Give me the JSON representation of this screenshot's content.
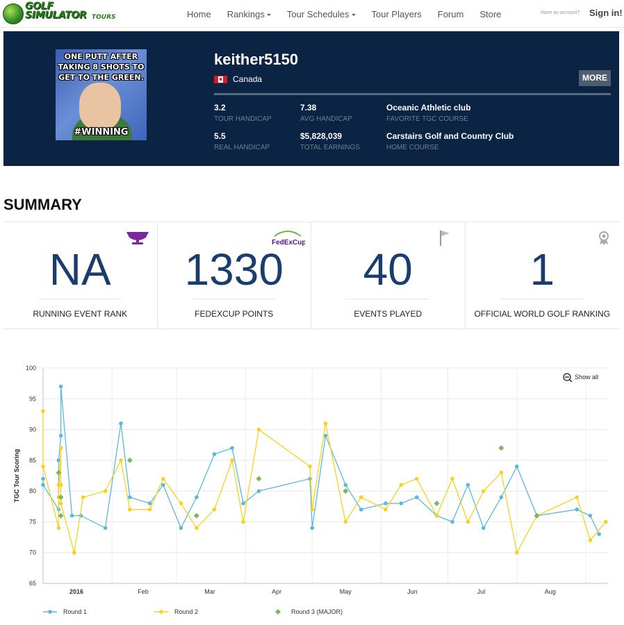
{
  "nav": {
    "logo_line1": "GOLF",
    "logo_line2": "SIMULATOR",
    "logo_tours": "TOURS",
    "items": [
      "Home",
      "Rankings",
      "Tour Schedules",
      "Tour Players",
      "Forum",
      "Store"
    ],
    "account_prompt": "Have an account?",
    "sign_in": "Sign in!"
  },
  "profile": {
    "avatar_top": "ONE PUTT AFTER TAKING 8 SHOTS TO GET TO THE GREEN.",
    "avatar_bottom": "#WINNING",
    "username": "keither5150",
    "country": "Canada",
    "more": "MORE",
    "stats": [
      {
        "value": "3.2",
        "label": "TOUR HANDICAP"
      },
      {
        "value": "7.38",
        "label": "AVG HANDICAP"
      },
      {
        "value": "Oceanic Athletic club",
        "label": "FAVORITE TGC COURSE"
      },
      {
        "value": "5.5",
        "label": "REAL HANDICAP"
      },
      {
        "value": "$5,828,039",
        "label": "TOTAL EARNINGS"
      },
      {
        "value": "Carstairs Golf and Country Club",
        "label": "HOME COURSE"
      }
    ]
  },
  "summary": {
    "title": "SUMMARY",
    "cards": [
      {
        "value": "NA",
        "label": "RUNNING EVENT RANK",
        "icon": "trophy-icon"
      },
      {
        "value": "1330",
        "label": "FEDEXCUP POINTS",
        "icon": "fedexcup-logo",
        "logo_text": "FedExCup"
      },
      {
        "value": "40",
        "label": "EVENTS PLAYED",
        "icon": "flag-icon"
      },
      {
        "value": "1",
        "label": "OFFICIAL WORLD GOLF RANKING",
        "icon": "award-ribbon-icon"
      }
    ]
  },
  "colors": {
    "nav_bg": "#ffffff",
    "profile_bg": "#0c2443",
    "round1": "#5cb8dc",
    "round2": "#f7d221",
    "round3": "#7bb661",
    "card_value": "#1a3d6e"
  },
  "chart_data": {
    "type": "line",
    "ylabel": "TGC Tour Scoring",
    "ylim": [
      65,
      100
    ],
    "yticks": [
      65,
      70,
      75,
      80,
      85,
      90,
      95,
      100
    ],
    "xticks": [
      "2016",
      "Feb",
      "Mar",
      "Apr",
      "May",
      "Jun",
      "Jul",
      "Aug"
    ],
    "xrange": [
      "2016-01-01",
      "2016-08-31"
    ],
    "show_all": "Show all",
    "series": [
      {
        "name": "Round 1",
        "points": [
          [
            "2016-01-01",
            82
          ],
          [
            "2016-01-01",
            81
          ],
          [
            "2016-01-08",
            77
          ],
          [
            "2016-01-08",
            85
          ],
          [
            "2016-01-09",
            89
          ],
          [
            "2016-01-09",
            97
          ],
          [
            "2016-01-14",
            76
          ],
          [
            "2016-01-18",
            76
          ],
          [
            "2016-01-29",
            74
          ],
          [
            "2016-02-05",
            91
          ],
          [
            "2016-02-09",
            79
          ],
          [
            "2016-02-18",
            78
          ],
          [
            "2016-02-24",
            81
          ],
          [
            "2016-03-03",
            74
          ],
          [
            "2016-03-10",
            79
          ],
          [
            "2016-03-18",
            86
          ],
          [
            "2016-03-26",
            87
          ],
          [
            "2016-03-31",
            78
          ],
          [
            "2016-04-07",
            80
          ],
          [
            "2016-04-30",
            82
          ],
          [
            "2016-05-01",
            74
          ],
          [
            "2016-05-07",
            89
          ],
          [
            "2016-05-16",
            81
          ],
          [
            "2016-05-23",
            77
          ],
          [
            "2016-06-03",
            78
          ],
          [
            "2016-06-10",
            78
          ],
          [
            "2016-06-17",
            79
          ],
          [
            "2016-06-26",
            76
          ],
          [
            "2016-07-03",
            75
          ],
          [
            "2016-07-10",
            81
          ],
          [
            "2016-07-17",
            74
          ],
          [
            "2016-07-25",
            79
          ],
          [
            "2016-08-01",
            84
          ],
          [
            "2016-08-10",
            76
          ],
          [
            "2016-08-28",
            77
          ],
          [
            "2016-09-03",
            76
          ],
          [
            "2016-09-07",
            73
          ]
        ]
      },
      {
        "name": "Round 2",
        "points": [
          [
            "2016-01-01",
            93
          ],
          [
            "2016-01-01",
            84
          ],
          [
            "2016-01-08",
            74
          ],
          [
            "2016-01-08",
            81
          ],
          [
            "2016-01-08",
            79
          ],
          [
            "2016-01-09",
            87
          ],
          [
            "2016-01-09",
            81
          ],
          [
            "2016-01-09",
            78
          ],
          [
            "2016-01-15",
            70
          ],
          [
            "2016-01-19",
            79
          ],
          [
            "2016-01-29",
            80
          ],
          [
            "2016-02-05",
            85
          ],
          [
            "2016-02-09",
            77
          ],
          [
            "2016-02-18",
            77
          ],
          [
            "2016-02-24",
            82
          ],
          [
            "2016-03-03",
            78
          ],
          [
            "2016-03-10",
            74
          ],
          [
            "2016-03-18",
            77
          ],
          [
            "2016-03-26",
            85
          ],
          [
            "2016-03-31",
            75
          ],
          [
            "2016-04-07",
            90
          ],
          [
            "2016-04-30",
            84
          ],
          [
            "2016-05-01",
            77
          ],
          [
            "2016-05-07",
            91
          ],
          [
            "2016-05-16",
            75
          ],
          [
            "2016-05-23",
            79
          ],
          [
            "2016-06-03",
            77
          ],
          [
            "2016-06-10",
            81
          ],
          [
            "2016-06-17",
            82
          ],
          [
            "2016-06-26",
            76
          ],
          [
            "2016-07-03",
            82
          ],
          [
            "2016-07-10",
            75
          ],
          [
            "2016-07-17",
            80
          ],
          [
            "2016-07-25",
            83
          ],
          [
            "2016-08-01",
            70
          ],
          [
            "2016-08-10",
            76
          ],
          [
            "2016-08-28",
            79
          ],
          [
            "2016-09-03",
            72
          ],
          [
            "2016-09-10",
            75
          ]
        ]
      },
      {
        "name": "Round 3 (MAJOR)",
        "points": [
          [
            "2016-01-08",
            83
          ],
          [
            "2016-01-09",
            79
          ],
          [
            "2016-01-09",
            76
          ],
          [
            "2016-02-09",
            85
          ],
          [
            "2016-03-10",
            76
          ],
          [
            "2016-04-07",
            82
          ],
          [
            "2016-05-16",
            80
          ],
          [
            "2016-06-26",
            78
          ],
          [
            "2016-07-25",
            87
          ],
          [
            "2016-08-10",
            76
          ]
        ]
      }
    ]
  }
}
